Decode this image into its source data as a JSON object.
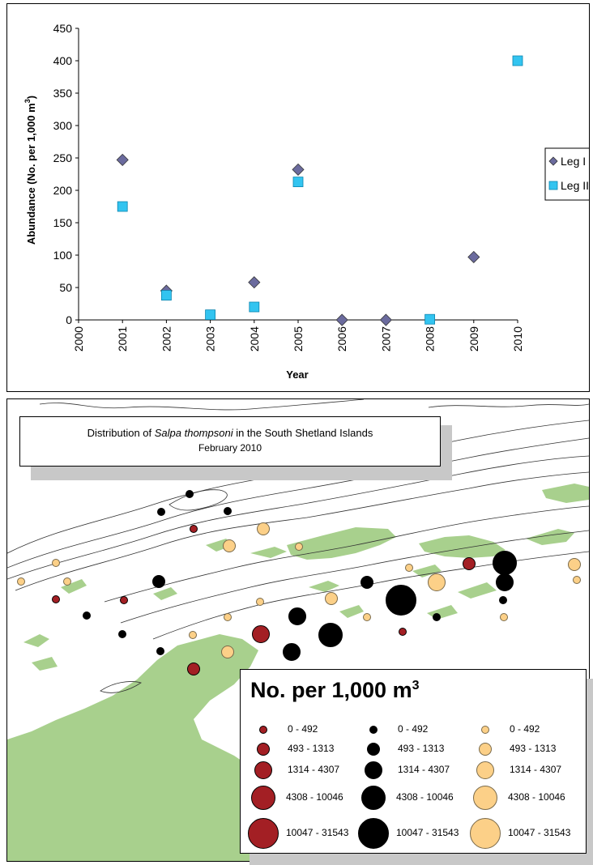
{
  "chart_data": [
    {
      "type": "scatter",
      "title": "",
      "xlabel": "Year",
      "ylabel": "Abundance (No. per 1,000 m",
      "ylabel_sup": "3",
      "ylabel_end": ")",
      "xlim": [
        2000,
        2010
      ],
      "ylim": [
        0,
        450
      ],
      "x_ticks": [
        "2000",
        "2001",
        "2002",
        "2003",
        "2004",
        "2005",
        "2006",
        "2007",
        "2008",
        "2009",
        "2010"
      ],
      "y_ticks": [
        "0",
        "50",
        "100",
        "150",
        "200",
        "250",
        "300",
        "350",
        "400",
        "450"
      ],
      "grid": false,
      "legend_position": "right",
      "series": [
        {
          "name": "Leg I",
          "marker": "diamond",
          "color": "#6b6b9e",
          "points": [
            [
              2001,
              247
            ],
            [
              2002,
              45
            ],
            [
              2004,
              58
            ],
            [
              2005,
              232
            ],
            [
              2006,
              0
            ],
            [
              2007,
              0
            ],
            [
              2009,
              97
            ]
          ]
        },
        {
          "name": "Leg II",
          "marker": "square",
          "color": "#33c4f0",
          "points": [
            [
              2001,
              175
            ],
            [
              2002,
              38
            ],
            [
              2003,
              8
            ],
            [
              2004,
              20
            ],
            [
              2005,
              213
            ],
            [
              2008,
              1
            ],
            [
              2010,
              400
            ]
          ]
        }
      ]
    }
  ],
  "map": {
    "title_prefix": "Distribution of ",
    "title_species": "Salpa thompsoni",
    "title_suffix": " in the South Shetland Islands",
    "subtitle": "February 2010",
    "land_color": "#a8d08d",
    "legend": {
      "title": "No. per 1,000 m",
      "title_sup": "3",
      "classes": [
        "0 - 492",
        "493 - 1313",
        "1314 - 4307",
        "4308 - 10046",
        "10047 - 31543"
      ],
      "series_colors": [
        "#a31f24",
        "#000000",
        "#fcd088"
      ]
    }
  }
}
